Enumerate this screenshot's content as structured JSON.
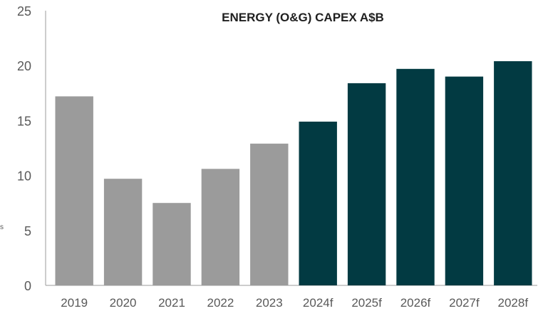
{
  "chart_data": {
    "type": "bar",
    "title": "ENERGY (O&G) CAPEX A$B",
    "ylabel": "s",
    "xlabel": "",
    "ylim": [
      0,
      25
    ],
    "yticks": [
      0,
      5,
      10,
      15,
      20,
      25
    ],
    "grid": false,
    "categories": [
      "2019",
      "2020",
      "2021",
      "2022",
      "2023",
      "2024f",
      "2025f",
      "2026f",
      "2027f",
      "2028f"
    ],
    "values": [
      17.2,
      9.7,
      7.5,
      10.6,
      12.9,
      14.9,
      18.4,
      19.7,
      19.0,
      20.4
    ],
    "colors": {
      "actual": "#9b9b9b",
      "forecast": "#023a42",
      "axis": "#9b9b9b"
    },
    "bar_kinds": [
      "actual",
      "actual",
      "actual",
      "actual",
      "actual",
      "forecast",
      "forecast",
      "forecast",
      "forecast",
      "forecast"
    ]
  }
}
